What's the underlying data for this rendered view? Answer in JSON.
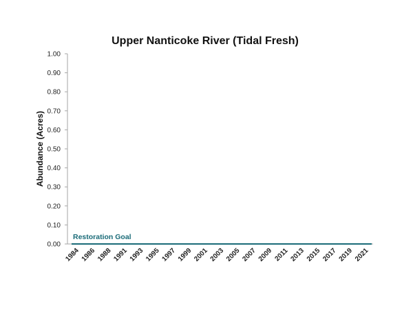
{
  "chart_data": {
    "type": "line",
    "title": "Upper Nanticoke River (Tidal Fresh)",
    "xlabel": "",
    "ylabel": "Abundance (Acres)",
    "ylim": [
      0,
      1
    ],
    "y_ticks": [
      "0.00",
      "0.10",
      "0.20",
      "0.30",
      "0.40",
      "0.50",
      "0.60",
      "0.70",
      "0.80",
      "0.90",
      "1.00"
    ],
    "categories": [
      "1984",
      "1986",
      "1988",
      "1991",
      "1993",
      "1995",
      "1997",
      "1999",
      "2001",
      "2003",
      "2005",
      "2007",
      "2009",
      "2011",
      "2013",
      "2015",
      "2017",
      "2019",
      "2021"
    ],
    "grid": false,
    "legend": "none",
    "series": [
      {
        "name": "Restoration Goal",
        "values": [
          0,
          0,
          0,
          0,
          0,
          0,
          0,
          0,
          0,
          0,
          0,
          0,
          0,
          0,
          0,
          0,
          0,
          0,
          0
        ],
        "color": "#1a6b78"
      }
    ],
    "colors": {
      "axis": "#a6a6a6",
      "goal": "#1a6b78"
    }
  }
}
